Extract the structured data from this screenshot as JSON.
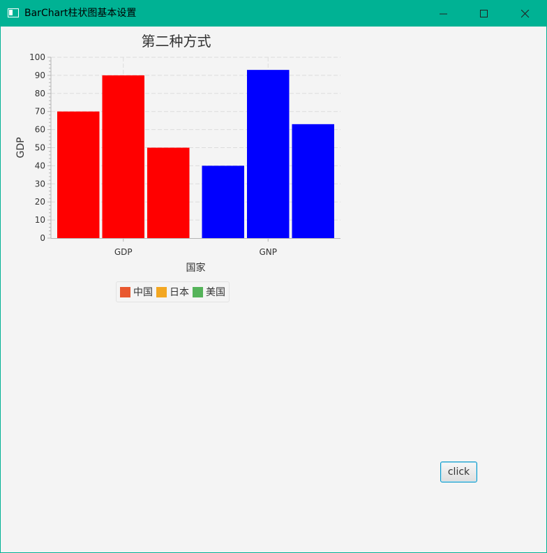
{
  "window": {
    "title": "BarChart柱状图基本设置",
    "minimize_icon": "minimize-icon",
    "maximize_icon": "maximize-icon",
    "close_icon": "close-icon"
  },
  "chart_data": {
    "type": "bar",
    "title": "第二种方式",
    "xlabel": "国家",
    "ylabel": "GDP",
    "categories": [
      "GDP",
      "GNP"
    ],
    "ylim": [
      0,
      100
    ],
    "yticks": [
      0,
      10,
      20,
      30,
      40,
      50,
      60,
      70,
      80,
      90,
      100
    ],
    "grid": true,
    "legend_placement": "bottom",
    "series": [
      {
        "name": "中国",
        "legend_color": "#e9582f"
      },
      {
        "name": "日本",
        "legend_color": "#f3a722"
      },
      {
        "name": "美国",
        "legend_color": "#55b35a"
      }
    ],
    "values": [
      [
        70,
        90,
        50
      ],
      [
        40,
        93,
        63
      ]
    ],
    "bar_colors": [
      "#ff0000",
      "#0000ff"
    ]
  },
  "button": {
    "label": "click"
  }
}
